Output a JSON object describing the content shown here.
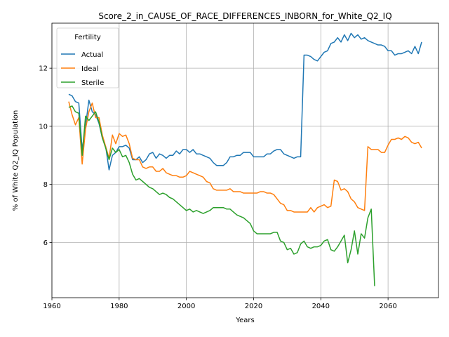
{
  "chart_data": {
    "type": "line",
    "title": "Score_2_in_CAUSE_OF_RACE_DIFFERENCES_INBORN_for_White_Q2_IQ",
    "xlabel": "Years",
    "ylabel": "% of White Q2_IQ Population",
    "xlim": [
      1960,
      2075
    ],
    "ylim": [
      4.1,
      13.55
    ],
    "xticks": [
      1960,
      1980,
      2000,
      2020,
      2040,
      2060
    ],
    "yticks": [
      6,
      8,
      10,
      12
    ],
    "grid": true,
    "legend": {
      "title": "Fertility",
      "placement": "top-left"
    },
    "series": [
      {
        "name": "Actual",
        "color": "#1f77b4",
        "points": [
          [
            1965,
            11.1
          ],
          [
            1966,
            11.05
          ],
          [
            1967,
            10.85
          ],
          [
            1968,
            10.8
          ],
          [
            1969,
            9.2
          ],
          [
            1970,
            10.0
          ],
          [
            1971,
            10.9
          ],
          [
            1972,
            10.5
          ],
          [
            1973,
            10.4
          ],
          [
            1974,
            10.1
          ],
          [
            1975,
            9.6
          ],
          [
            1976,
            9.3
          ],
          [
            1977,
            8.5
          ],
          [
            1978,
            9.0
          ],
          [
            1979,
            9.1
          ],
          [
            1980,
            9.3
          ],
          [
            1981,
            9.3
          ],
          [
            1982,
            9.35
          ],
          [
            1983,
            9.25
          ],
          [
            1984,
            8.85
          ],
          [
            1985,
            8.85
          ],
          [
            1986,
            8.95
          ],
          [
            1987,
            8.75
          ],
          [
            1988,
            8.85
          ],
          [
            1989,
            9.05
          ],
          [
            1990,
            9.1
          ],
          [
            1991,
            8.9
          ],
          [
            1992,
            9.05
          ],
          [
            1993,
            9.0
          ],
          [
            1994,
            8.9
          ],
          [
            1995,
            9.0
          ],
          [
            1996,
            9.0
          ],
          [
            1997,
            9.15
          ],
          [
            1998,
            9.05
          ],
          [
            1999,
            9.2
          ],
          [
            2000,
            9.2
          ],
          [
            2001,
            9.1
          ],
          [
            2002,
            9.2
          ],
          [
            2003,
            9.05
          ],
          [
            2004,
            9.05
          ],
          [
            2005,
            9.0
          ],
          [
            2006,
            8.95
          ],
          [
            2007,
            8.9
          ],
          [
            2008,
            8.75
          ],
          [
            2009,
            8.65
          ],
          [
            2010,
            8.65
          ],
          [
            2011,
            8.65
          ],
          [
            2012,
            8.75
          ],
          [
            2013,
            8.95
          ],
          [
            2014,
            8.95
          ],
          [
            2015,
            9.0
          ],
          [
            2016,
            9.0
          ],
          [
            2017,
            9.1
          ],
          [
            2018,
            9.1
          ],
          [
            2019,
            9.1
          ],
          [
            2020,
            8.95
          ],
          [
            2021,
            8.95
          ],
          [
            2022,
            8.95
          ],
          [
            2023,
            8.95
          ],
          [
            2024,
            9.05
          ],
          [
            2025,
            9.05
          ],
          [
            2026,
            9.15
          ],
          [
            2027,
            9.2
          ],
          [
            2028,
            9.2
          ],
          [
            2029,
            9.05
          ],
          [
            2030,
            9.0
          ],
          [
            2031,
            8.95
          ],
          [
            2032,
            8.9
          ],
          [
            2033,
            8.95
          ],
          [
            2034,
            8.95
          ],
          [
            2035,
            12.45
          ],
          [
            2036,
            12.45
          ],
          [
            2037,
            12.4
          ],
          [
            2038,
            12.3
          ],
          [
            2039,
            12.25
          ],
          [
            2040,
            12.4
          ],
          [
            2041,
            12.55
          ],
          [
            2042,
            12.6
          ],
          [
            2043,
            12.85
          ],
          [
            2044,
            12.9
          ],
          [
            2045,
            13.05
          ],
          [
            2046,
            12.9
          ],
          [
            2047,
            13.15
          ],
          [
            2048,
            12.95
          ],
          [
            2049,
            13.2
          ],
          [
            2050,
            13.05
          ],
          [
            2051,
            13.15
          ],
          [
            2052,
            13.0
          ],
          [
            2053,
            13.05
          ],
          [
            2054,
            12.95
          ],
          [
            2055,
            12.9
          ],
          [
            2056,
            12.85
          ],
          [
            2057,
            12.8
          ],
          [
            2058,
            12.8
          ],
          [
            2059,
            12.75
          ],
          [
            2060,
            12.6
          ],
          [
            2061,
            12.6
          ],
          [
            2062,
            12.45
          ],
          [
            2063,
            12.5
          ],
          [
            2064,
            12.5
          ],
          [
            2065,
            12.55
          ],
          [
            2066,
            12.6
          ],
          [
            2067,
            12.5
          ],
          [
            2068,
            12.75
          ],
          [
            2069,
            12.5
          ],
          [
            2070,
            12.9
          ]
        ]
      },
      {
        "name": "Ideal",
        "color": "#ff7f0e",
        "points": [
          [
            1965,
            10.85
          ],
          [
            1966,
            10.4
          ],
          [
            1967,
            10.05
          ],
          [
            1968,
            10.3
          ],
          [
            1969,
            8.7
          ],
          [
            1970,
            9.9
          ],
          [
            1971,
            10.5
          ],
          [
            1972,
            10.8
          ],
          [
            1973,
            10.3
          ],
          [
            1974,
            10.3
          ],
          [
            1975,
            9.7
          ],
          [
            1976,
            9.3
          ],
          [
            1977,
            8.9
          ],
          [
            1978,
            9.7
          ],
          [
            1979,
            9.4
          ],
          [
            1980,
            9.75
          ],
          [
            1981,
            9.65
          ],
          [
            1982,
            9.7
          ],
          [
            1983,
            9.4
          ],
          [
            1984,
            8.9
          ],
          [
            1985,
            8.85
          ],
          [
            1986,
            8.85
          ],
          [
            1987,
            8.6
          ],
          [
            1988,
            8.55
          ],
          [
            1989,
            8.6
          ],
          [
            1990,
            8.6
          ],
          [
            1991,
            8.45
          ],
          [
            1992,
            8.45
          ],
          [
            1993,
            8.55
          ],
          [
            1994,
            8.4
          ],
          [
            1995,
            8.35
          ],
          [
            1996,
            8.3
          ],
          [
            1997,
            8.3
          ],
          [
            1998,
            8.25
          ],
          [
            1999,
            8.25
          ],
          [
            2000,
            8.3
          ],
          [
            2001,
            8.45
          ],
          [
            2002,
            8.4
          ],
          [
            2003,
            8.35
          ],
          [
            2004,
            8.3
          ],
          [
            2005,
            8.25
          ],
          [
            2006,
            8.1
          ],
          [
            2007,
            8.05
          ],
          [
            2008,
            7.85
          ],
          [
            2009,
            7.8
          ],
          [
            2010,
            7.8
          ],
          [
            2011,
            7.8
          ],
          [
            2012,
            7.8
          ],
          [
            2013,
            7.85
          ],
          [
            2014,
            7.75
          ],
          [
            2015,
            7.75
          ],
          [
            2016,
            7.75
          ],
          [
            2017,
            7.7
          ],
          [
            2018,
            7.7
          ],
          [
            2019,
            7.7
          ],
          [
            2020,
            7.7
          ],
          [
            2021,
            7.7
          ],
          [
            2022,
            7.75
          ],
          [
            2023,
            7.75
          ],
          [
            2024,
            7.7
          ],
          [
            2025,
            7.7
          ],
          [
            2026,
            7.65
          ],
          [
            2027,
            7.5
          ],
          [
            2028,
            7.35
          ],
          [
            2029,
            7.3
          ],
          [
            2030,
            7.1
          ],
          [
            2031,
            7.1
          ],
          [
            2032,
            7.05
          ],
          [
            2033,
            7.05
          ],
          [
            2034,
            7.05
          ],
          [
            2035,
            7.05
          ],
          [
            2036,
            7.05
          ],
          [
            2037,
            7.2
          ],
          [
            2038,
            7.05
          ],
          [
            2039,
            7.2
          ],
          [
            2040,
            7.25
          ],
          [
            2041,
            7.3
          ],
          [
            2042,
            7.2
          ],
          [
            2043,
            7.25
          ],
          [
            2044,
            8.15
          ],
          [
            2045,
            8.1
          ],
          [
            2046,
            7.8
          ],
          [
            2047,
            7.85
          ],
          [
            2048,
            7.75
          ],
          [
            2049,
            7.5
          ],
          [
            2050,
            7.4
          ],
          [
            2051,
            7.2
          ],
          [
            2052,
            7.15
          ],
          [
            2053,
            7.1
          ],
          [
            2054,
            9.3
          ],
          [
            2055,
            9.2
          ],
          [
            2056,
            9.2
          ],
          [
            2057,
            9.2
          ],
          [
            2058,
            9.1
          ],
          [
            2059,
            9.1
          ],
          [
            2060,
            9.35
          ],
          [
            2061,
            9.55
          ],
          [
            2062,
            9.55
          ],
          [
            2063,
            9.6
          ],
          [
            2064,
            9.55
          ],
          [
            2065,
            9.65
          ],
          [
            2066,
            9.6
          ],
          [
            2067,
            9.45
          ],
          [
            2068,
            9.4
          ],
          [
            2069,
            9.45
          ],
          [
            2070,
            9.25
          ]
        ]
      },
      {
        "name": "Sterile",
        "color": "#2ca02c",
        "points": [
          [
            1965,
            10.65
          ],
          [
            1966,
            10.7
          ],
          [
            1967,
            10.5
          ],
          [
            1968,
            10.45
          ],
          [
            1969,
            9.0
          ],
          [
            1970,
            10.35
          ],
          [
            1971,
            10.2
          ],
          [
            1972,
            10.35
          ],
          [
            1973,
            10.5
          ],
          [
            1974,
            10.15
          ],
          [
            1975,
            9.6
          ],
          [
            1976,
            9.25
          ],
          [
            1977,
            8.85
          ],
          [
            1978,
            9.25
          ],
          [
            1979,
            9.1
          ],
          [
            1980,
            9.2
          ],
          [
            1981,
            8.95
          ],
          [
            1982,
            9.0
          ],
          [
            1983,
            8.75
          ],
          [
            1984,
            8.35
          ],
          [
            1985,
            8.15
          ],
          [
            1986,
            8.2
          ],
          [
            1987,
            8.1
          ],
          [
            1988,
            8.0
          ],
          [
            1989,
            7.9
          ],
          [
            1990,
            7.85
          ],
          [
            1991,
            7.75
          ],
          [
            1992,
            7.65
          ],
          [
            1993,
            7.7
          ],
          [
            1994,
            7.65
          ],
          [
            1995,
            7.55
          ],
          [
            1996,
            7.5
          ],
          [
            1997,
            7.4
          ],
          [
            1998,
            7.3
          ],
          [
            1999,
            7.2
          ],
          [
            2000,
            7.1
          ],
          [
            2001,
            7.15
          ],
          [
            2002,
            7.05
          ],
          [
            2003,
            7.1
          ],
          [
            2004,
            7.05
          ],
          [
            2005,
            7.0
          ],
          [
            2006,
            7.05
          ],
          [
            2007,
            7.1
          ],
          [
            2008,
            7.2
          ],
          [
            2009,
            7.2
          ],
          [
            2010,
            7.2
          ],
          [
            2011,
            7.2
          ],
          [
            2012,
            7.15
          ],
          [
            2013,
            7.15
          ],
          [
            2014,
            7.05
          ],
          [
            2015,
            6.95
          ],
          [
            2016,
            6.9
          ],
          [
            2017,
            6.85
          ],
          [
            2018,
            6.75
          ],
          [
            2019,
            6.65
          ],
          [
            2020,
            6.4
          ],
          [
            2021,
            6.3
          ],
          [
            2022,
            6.3
          ],
          [
            2023,
            6.3
          ],
          [
            2024,
            6.3
          ],
          [
            2025,
            6.3
          ],
          [
            2026,
            6.35
          ],
          [
            2027,
            6.35
          ],
          [
            2028,
            6.05
          ],
          [
            2029,
            6.0
          ],
          [
            2030,
            5.75
          ],
          [
            2031,
            5.8
          ],
          [
            2032,
            5.6
          ],
          [
            2033,
            5.65
          ],
          [
            2034,
            5.95
          ],
          [
            2035,
            6.05
          ],
          [
            2036,
            5.85
          ],
          [
            2037,
            5.8
          ],
          [
            2038,
            5.85
          ],
          [
            2039,
            5.85
          ],
          [
            2040,
            5.9
          ],
          [
            2041,
            6.05
          ],
          [
            2042,
            6.1
          ],
          [
            2043,
            5.75
          ],
          [
            2044,
            5.7
          ],
          [
            2045,
            5.85
          ],
          [
            2046,
            6.05
          ],
          [
            2047,
            6.25
          ],
          [
            2048,
            5.3
          ],
          [
            2049,
            5.75
          ],
          [
            2050,
            6.4
          ],
          [
            2051,
            5.6
          ],
          [
            2052,
            6.3
          ],
          [
            2053,
            6.15
          ],
          [
            2054,
            6.85
          ],
          [
            2055,
            7.15
          ],
          [
            2056,
            4.5
          ]
        ]
      }
    ]
  }
}
